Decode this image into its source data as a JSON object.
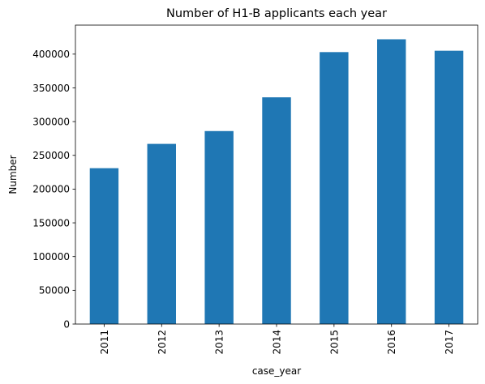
{
  "chart_data": {
    "type": "bar",
    "title": "Number of H1-B applicants each year",
    "xlabel": "case_year",
    "ylabel": "Number",
    "categories": [
      "2011",
      "2012",
      "2013",
      "2014",
      "2015",
      "2016",
      "2017"
    ],
    "values": [
      231000,
      267000,
      286000,
      336000,
      403000,
      422000,
      405000
    ],
    "ylim": [
      0,
      443000
    ],
    "yticks": [
      0,
      50000,
      100000,
      150000,
      200000,
      250000,
      300000,
      350000,
      400000
    ],
    "ytick_labels": [
      "0",
      "50000",
      "100000",
      "150000",
      "200000",
      "250000",
      "300000",
      "350000",
      "400000"
    ],
    "xtick_rotation": "vertical",
    "grid": false,
    "legend": "none",
    "bar_color": "#1f77b4"
  }
}
